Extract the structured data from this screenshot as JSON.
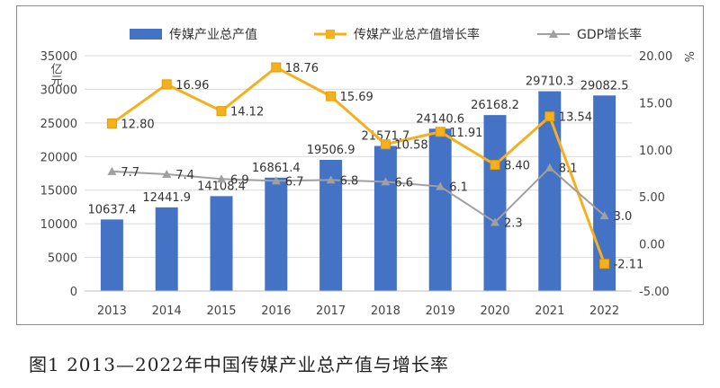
{
  "chart_data": {
    "type": "bar+line",
    "categories": [
      "2013",
      "2014",
      "2015",
      "2016",
      "2017",
      "2018",
      "2019",
      "2020",
      "2021",
      "2022"
    ],
    "bars": {
      "name": "传媒产业总产值",
      "values": [
        10637.4,
        12441.9,
        14108.4,
        16861.4,
        19506.9,
        21571.7,
        24140.6,
        26168.2,
        29710.3,
        29082.5
      ],
      "labels": [
        "10637.4",
        "12441.9",
        "14108.4",
        "16861.4",
        "19506.9",
        "21571.7",
        "24140.6",
        "26168.2",
        "29710.3",
        "29082.5"
      ],
      "color": "#4472c4"
    },
    "series": [
      {
        "name": "传媒产业总产值增长率",
        "values": [
          12.8,
          16.96,
          14.12,
          18.76,
          15.69,
          10.58,
          11.91,
          8.4,
          13.54,
          -2.11
        ],
        "labels": [
          "12.80",
          "16.96",
          "14.12",
          "18.76",
          "15.69",
          "10.58",
          "11.91",
          "8.40",
          "13.54",
          "-2.11"
        ],
        "color": "#f5b020",
        "marker": "square"
      },
      {
        "name": "GDP增长率",
        "values": [
          7.7,
          7.4,
          6.9,
          6.7,
          6.8,
          6.6,
          6.1,
          2.3,
          8.1,
          3.0
        ],
        "labels": [
          "7.7",
          "7.4",
          "6.9",
          "6.7",
          "6.8",
          "6.6",
          "6.1",
          "2.3",
          "8.1",
          "3.0"
        ],
        "color": "#a0a0a0",
        "marker": "triangle"
      }
    ],
    "left_axis": {
      "unit": "亿元",
      "ylim": [
        0,
        35000
      ],
      "ticks": [
        0,
        5000,
        10000,
        15000,
        20000,
        25000,
        30000,
        35000
      ],
      "tick_labels": [
        "0",
        "5000",
        "10000",
        "15000",
        "20000",
        "25000",
        "30000",
        "35000"
      ]
    },
    "right_axis": {
      "unit": "%",
      "ylim": [
        -5,
        20
      ],
      "ticks": [
        -5,
        0,
        5,
        10,
        15,
        20
      ],
      "tick_labels": [
        "-5.00",
        "0.00",
        "5.00",
        "10.00",
        "15.00",
        "20.00"
      ]
    },
    "legend_position": "top",
    "grid": true
  },
  "caption": "图1 2013—2022年中国传媒产业总产值与增长率"
}
